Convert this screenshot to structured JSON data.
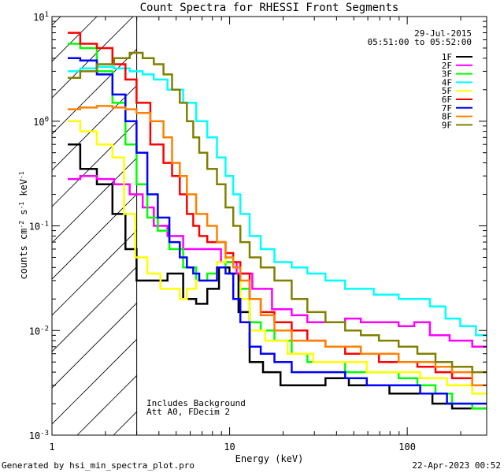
{
  "chart_data": {
    "type": "line",
    "title": "Count Spectra for RHESSI Front Segments",
    "xlabel": "Energy (keV)",
    "ylabel_parts": [
      "counts cm",
      "-2",
      " s",
      "-1",
      " keV",
      "-1"
    ],
    "xscale": "log",
    "yscale": "log",
    "xlim": [
      1,
      280
    ],
    "ylim": [
      0.001,
      10
    ],
    "x_ticks": [
      {
        "value": 1,
        "label": "1"
      },
      {
        "value": 10,
        "label": "10"
      },
      {
        "value": 100,
        "label": "100"
      }
    ],
    "y_ticks": [
      {
        "value": 10,
        "base": "10",
        "exp": "1"
      },
      {
        "value": 1,
        "base": "10",
        "exp": "0"
      },
      {
        "value": 0.1,
        "base": "10",
        "exp": "-1"
      },
      {
        "value": 0.01,
        "base": "10",
        "exp": "-2"
      },
      {
        "value": 0.001,
        "base": "10",
        "exp": "-3"
      }
    ],
    "date": "29-Jul-2015",
    "time_range": "05:51:00 to 05:52:00",
    "hatched_threshold_kev": 3,
    "annotation_lines": [
      "Includes Background",
      "Att A0, FDecim 2"
    ],
    "series": [
      {
        "name": "1F",
        "color": "#000000",
        "points": [
          [
            1.3,
            0.6
          ],
          [
            1.6,
            0.35
          ],
          [
            2.0,
            0.25
          ],
          [
            2.4,
            0.13
          ],
          [
            2.8,
            0.06
          ],
          [
            3.2,
            0.03
          ],
          [
            4.0,
            0.03
          ],
          [
            5.0,
            0.035
          ],
          [
            6.0,
            0.02
          ],
          [
            7.0,
            0.018
          ],
          [
            8.0,
            0.025
          ],
          [
            9.5,
            0.04
          ],
          [
            10.5,
            0.035
          ],
          [
            12,
            0.015
          ],
          [
            14,
            0.005
          ],
          [
            17,
            0.004
          ],
          [
            22,
            0.003
          ],
          [
            30,
            0.003
          ],
          [
            40,
            0.0035
          ],
          [
            55,
            0.003
          ],
          [
            70,
            0.003
          ],
          [
            90,
            0.0025
          ],
          [
            120,
            0.0025
          ],
          [
            160,
            0.002
          ],
          [
            200,
            0.0018
          ],
          [
            270,
            0.0018
          ]
        ]
      },
      {
        "name": "2F",
        "color": "#ff00ff",
        "points": [
          [
            1.3,
            0.28
          ],
          [
            1.6,
            0.3
          ],
          [
            2.0,
            0.28
          ],
          [
            2.5,
            0.25
          ],
          [
            3.0,
            0.2
          ],
          [
            3.5,
            0.15
          ],
          [
            4.0,
            0.1
          ],
          [
            5.0,
            0.08
          ],
          [
            6.0,
            0.06
          ],
          [
            7.0,
            0.06
          ],
          [
            8.0,
            0.06
          ],
          [
            10,
            0.045
          ],
          [
            12,
            0.035
          ],
          [
            15,
            0.025
          ],
          [
            20,
            0.016
          ],
          [
            25,
            0.014
          ],
          [
            30,
            0.012
          ],
          [
            40,
            0.012
          ],
          [
            50,
            0.013
          ],
          [
            60,
            0.012
          ],
          [
            80,
            0.012
          ],
          [
            100,
            0.011
          ],
          [
            120,
            0.012
          ],
          [
            150,
            0.009
          ],
          [
            200,
            0.008
          ],
          [
            270,
            0.007
          ]
        ]
      },
      {
        "name": "3F",
        "color": "#00ff00",
        "points": [
          [
            1.3,
            5.5
          ],
          [
            1.6,
            5.0
          ],
          [
            2.0,
            3.0
          ],
          [
            2.4,
            1.5
          ],
          [
            2.8,
            0.6
          ],
          [
            3.2,
            0.25
          ],
          [
            3.7,
            0.12
          ],
          [
            4.2,
            0.09
          ],
          [
            5.0,
            0.06
          ],
          [
            6.0,
            0.04
          ],
          [
            7.0,
            0.03
          ],
          [
            8.0,
            0.035
          ],
          [
            9.0,
            0.04
          ],
          [
            10,
            0.045
          ],
          [
            11,
            0.04
          ],
          [
            12,
            0.025
          ],
          [
            14,
            0.012
          ],
          [
            16,
            0.01
          ],
          [
            20,
            0.008
          ],
          [
            25,
            0.006
          ],
          [
            30,
            0.005
          ],
          [
            40,
            0.005
          ],
          [
            50,
            0.004
          ],
          [
            60,
            0.004
          ],
          [
            80,
            0.004
          ],
          [
            100,
            0.0035
          ],
          [
            130,
            0.003
          ],
          [
            160,
            0.0025
          ],
          [
            200,
            0.002
          ],
          [
            270,
            0.0018
          ]
        ]
      },
      {
        "name": "4F",
        "color": "#00ffff",
        "points": [
          [
            1.3,
            3.0
          ],
          [
            1.6,
            3.2
          ],
          [
            2.0,
            3.3
          ],
          [
            2.5,
            3.2
          ],
          [
            3.0,
            3.0
          ],
          [
            3.5,
            2.8
          ],
          [
            4.0,
            2.5
          ],
          [
            5.0,
            2.0
          ],
          [
            6.0,
            1.5
          ],
          [
            7.0,
            1.0
          ],
          [
            8.0,
            0.7
          ],
          [
            9.0,
            0.45
          ],
          [
            10,
            0.3
          ],
          [
            11,
            0.2
          ],
          [
            12,
            0.13
          ],
          [
            14,
            0.08
          ],
          [
            16,
            0.06
          ],
          [
            20,
            0.045
          ],
          [
            25,
            0.04
          ],
          [
            30,
            0.035
          ],
          [
            40,
            0.03
          ],
          [
            50,
            0.025
          ],
          [
            60,
            0.025
          ],
          [
            70,
            0.022
          ],
          [
            80,
            0.022
          ],
          [
            100,
            0.02
          ],
          [
            120,
            0.02
          ],
          [
            150,
            0.017
          ],
          [
            180,
            0.013
          ],
          [
            220,
            0.011
          ],
          [
            270,
            0.009
          ]
        ]
      },
      {
        "name": "5F",
        "color": "#ffff00",
        "points": [
          [
            1.3,
            1.0
          ],
          [
            1.6,
            0.8
          ],
          [
            2.0,
            0.6
          ],
          [
            2.4,
            0.45
          ],
          [
            2.7,
            0.13
          ],
          [
            3.2,
            0.05
          ],
          [
            3.7,
            0.035
          ],
          [
            4.5,
            0.025
          ],
          [
            5.0,
            0.025
          ],
          [
            5.5,
            0.02
          ],
          [
            6.0,
            0.025
          ],
          [
            7.0,
            0.03
          ],
          [
            8.0,
            0.03
          ],
          [
            9.0,
            0.045
          ],
          [
            10,
            0.05
          ],
          [
            11,
            0.04
          ],
          [
            12,
            0.02
          ],
          [
            14,
            0.01
          ],
          [
            18,
            0.008
          ],
          [
            25,
            0.006
          ],
          [
            35,
            0.005
          ],
          [
            50,
            0.005
          ],
          [
            70,
            0.004
          ],
          [
            100,
            0.004
          ],
          [
            140,
            0.0035
          ],
          [
            200,
            0.003
          ],
          [
            270,
            0.0025
          ]
        ]
      },
      {
        "name": "6F",
        "color": "#ff0000",
        "points": [
          [
            1.3,
            7.0
          ],
          [
            1.6,
            5.5
          ],
          [
            2.0,
            5.0
          ],
          [
            2.4,
            3.5
          ],
          [
            2.8,
            2.5
          ],
          [
            3.2,
            1.5
          ],
          [
            4.0,
            0.6
          ],
          [
            4.5,
            0.4
          ],
          [
            5.0,
            0.3
          ],
          [
            5.5,
            0.2
          ],
          [
            6.0,
            0.13
          ],
          [
            6.5,
            0.1
          ],
          [
            7.0,
            0.08
          ],
          [
            8.0,
            0.07
          ],
          [
            9.0,
            0.07
          ],
          [
            10,
            0.055
          ],
          [
            11,
            0.045
          ],
          [
            12,
            0.035
          ],
          [
            14,
            0.02
          ],
          [
            16,
            0.015
          ],
          [
            20,
            0.012
          ],
          [
            25,
            0.01
          ],
          [
            30,
            0.008
          ],
          [
            40,
            0.007
          ],
          [
            50,
            0.006
          ],
          [
            60,
            0.006
          ],
          [
            80,
            0.005
          ],
          [
            100,
            0.005
          ],
          [
            130,
            0.0045
          ],
          [
            160,
            0.004
          ],
          [
            200,
            0.0035
          ],
          [
            270,
            0.003
          ]
        ]
      },
      {
        "name": "7F",
        "color": "#0000ff",
        "points": [
          [
            1.3,
            4.0
          ],
          [
            1.6,
            3.8
          ],
          [
            2.0,
            2.8
          ],
          [
            2.4,
            1.8
          ],
          [
            2.8,
            1.0
          ],
          [
            3.2,
            0.5
          ],
          [
            3.7,
            0.2
          ],
          [
            4.2,
            0.12
          ],
          [
            5.0,
            0.07
          ],
          [
            5.5,
            0.05
          ],
          [
            6.0,
            0.04
          ],
          [
            6.5,
            0.035
          ],
          [
            7.0,
            0.03
          ],
          [
            8.0,
            0.03
          ],
          [
            9.0,
            0.04
          ],
          [
            10,
            0.035
          ],
          [
            11,
            0.02
          ],
          [
            12,
            0.012
          ],
          [
            14,
            0.007
          ],
          [
            16,
            0.006
          ],
          [
            20,
            0.005
          ],
          [
            25,
            0.004
          ],
          [
            30,
            0.004
          ],
          [
            40,
            0.004
          ],
          [
            50,
            0.0035
          ],
          [
            70,
            0.003
          ],
          [
            100,
            0.003
          ],
          [
            140,
            0.0025
          ],
          [
            200,
            0.002
          ],
          [
            270,
            0.002
          ]
        ]
      },
      {
        "name": "8F",
        "color": "#ff8000",
        "points": [
          [
            1.3,
            1.3
          ],
          [
            1.6,
            1.35
          ],
          [
            2.0,
            1.4
          ],
          [
            2.4,
            1.35
          ],
          [
            2.8,
            1.3
          ],
          [
            3.2,
            1.2
          ],
          [
            4.0,
            1.0
          ],
          [
            4.5,
            0.7
          ],
          [
            5.0,
            0.4
          ],
          [
            5.5,
            0.3
          ],
          [
            6.0,
            0.2
          ],
          [
            7.0,
            0.13
          ],
          [
            8.0,
            0.1
          ],
          [
            9.0,
            0.07
          ],
          [
            10,
            0.05
          ],
          [
            11,
            0.04
          ],
          [
            12,
            0.03
          ],
          [
            14,
            0.02
          ],
          [
            16,
            0.014
          ],
          [
            20,
            0.01
          ],
          [
            25,
            0.008
          ],
          [
            30,
            0.008
          ],
          [
            40,
            0.007
          ],
          [
            50,
            0.007
          ],
          [
            60,
            0.006
          ],
          [
            80,
            0.006
          ],
          [
            100,
            0.005
          ],
          [
            130,
            0.005
          ],
          [
            160,
            0.0045
          ],
          [
            200,
            0.004
          ],
          [
            270,
            0.003
          ]
        ]
      },
      {
        "name": "9F",
        "color": "#808000",
        "points": [
          [
            1.3,
            2.6
          ],
          [
            1.6,
            3.0
          ],
          [
            2.0,
            3.5
          ],
          [
            2.5,
            4.0
          ],
          [
            3.0,
            4.5
          ],
          [
            3.5,
            4.0
          ],
          [
            4.0,
            3.5
          ],
          [
            4.5,
            2.8
          ],
          [
            5.0,
            2.0
          ],
          [
            5.5,
            1.5
          ],
          [
            6.0,
            1.0
          ],
          [
            6.5,
            0.7
          ],
          [
            7.0,
            0.5
          ],
          [
            8.0,
            0.35
          ],
          [
            9.0,
            0.25
          ],
          [
            10,
            0.15
          ],
          [
            11,
            0.1
          ],
          [
            12,
            0.07
          ],
          [
            14,
            0.05
          ],
          [
            16,
            0.04
          ],
          [
            20,
            0.03
          ],
          [
            25,
            0.02
          ],
          [
            30,
            0.015
          ],
          [
            40,
            0.012
          ],
          [
            50,
            0.01
          ],
          [
            60,
            0.009
          ],
          [
            80,
            0.008
          ],
          [
            100,
            0.007
          ],
          [
            130,
            0.006
          ],
          [
            160,
            0.005
          ],
          [
            200,
            0.0045
          ],
          [
            270,
            0.004
          ]
        ]
      }
    ]
  },
  "footer": {
    "generated_by": "Generated by hsi_min_spectra_plot.pro",
    "timestamp": "22-Apr-2023 00:52"
  }
}
